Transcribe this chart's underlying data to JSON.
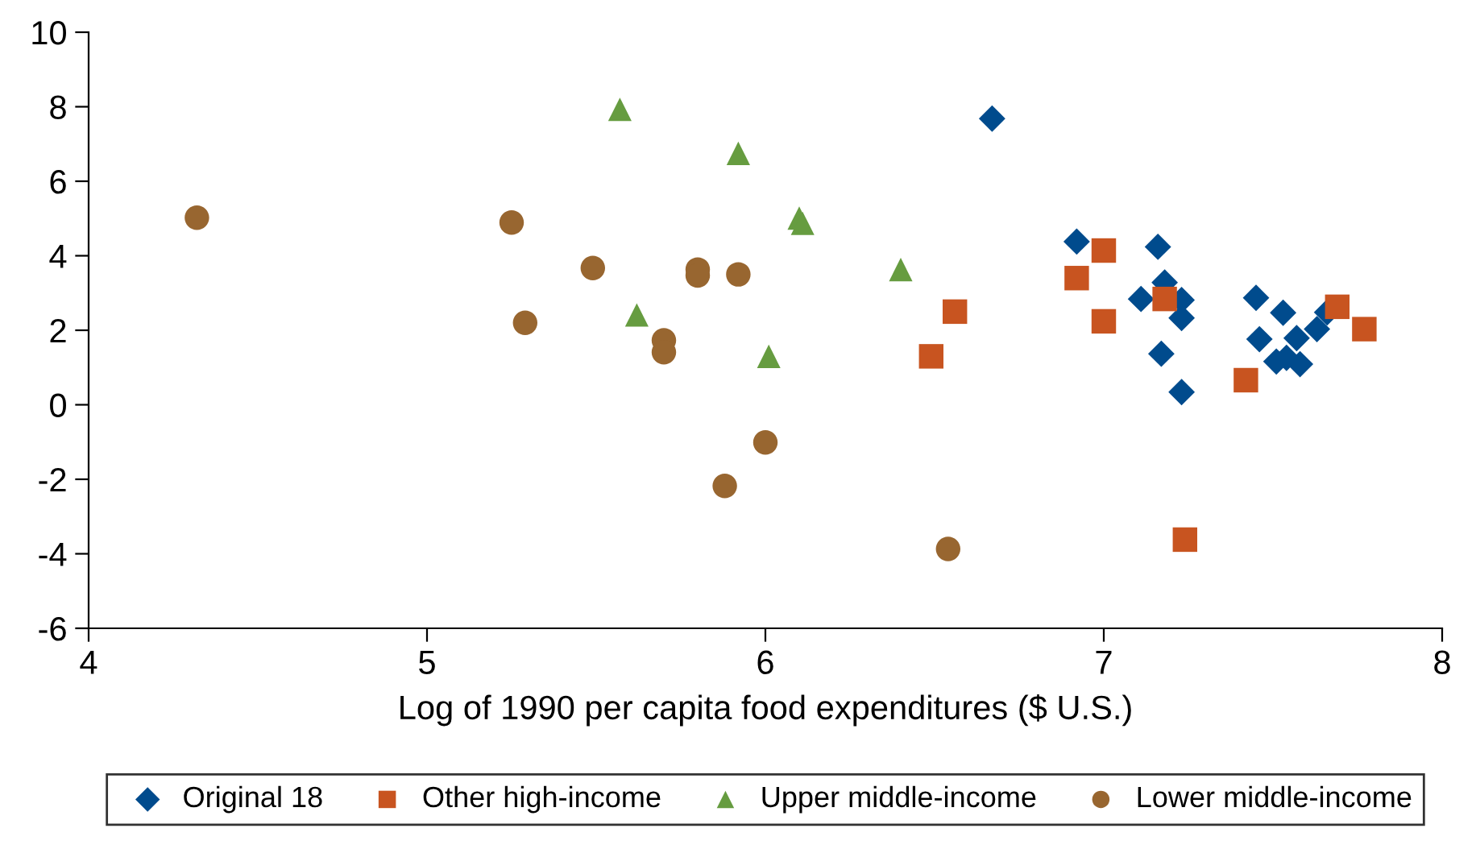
{
  "chart_data": {
    "type": "scatter",
    "xlabel": "Log of 1990 per capita food expenditures ($ U.S.)",
    "xlim": [
      4,
      8
    ],
    "ylim": [
      -6,
      10
    ],
    "xticks": [
      4,
      5,
      6,
      7,
      8
    ],
    "yticks": [
      -6,
      -4,
      -2,
      0,
      2,
      4,
      6,
      8,
      10
    ],
    "grid": false,
    "legend": "bottom",
    "series": [
      {
        "name": "Original 18",
        "color": "#004b8d",
        "marker": "diamond",
        "x": [
          6.67,
          6.92,
          7.16,
          7.18,
          7.11,
          7.23,
          7.23,
          7.17,
          7.23,
          7.45,
          7.53,
          7.46,
          7.57,
          7.63,
          7.66,
          7.51,
          7.54,
          7.58
        ],
        "values": [
          7.68,
          4.38,
          4.24,
          3.28,
          2.84,
          2.81,
          2.33,
          1.37,
          0.34,
          2.87,
          2.47,
          1.76,
          1.79,
          2.03,
          2.48,
          1.16,
          1.26,
          1.09
        ]
      },
      {
        "name": "Other high-income",
        "color": "#c85420",
        "marker": "square",
        "x": [
          6.49,
          6.56,
          7.0,
          6.92,
          7.0,
          7.18,
          7.42,
          7.69,
          7.77,
          7.24
        ],
        "values": [
          1.3,
          2.5,
          4.14,
          3.4,
          2.24,
          2.84,
          0.66,
          2.63,
          2.03,
          -3.62
        ]
      },
      {
        "name": "Upper middle-income",
        "color": "#669c40",
        "marker": "triangle",
        "x": [
          5.57,
          5.92,
          6.1,
          6.11,
          6.4,
          5.62,
          6.01
        ],
        "values": [
          7.93,
          6.75,
          5.01,
          4.87,
          3.63,
          2.41,
          1.3
        ]
      },
      {
        "name": "Lower middle-income",
        "color": "#986630",
        "marker": "circle",
        "x": [
          4.32,
          5.25,
          5.49,
          5.8,
          5.8,
          5.92,
          5.29,
          5.7,
          5.7,
          6.0,
          5.88,
          6.54
        ],
        "values": [
          5.02,
          4.89,
          3.67,
          3.63,
          3.47,
          3.5,
          2.2,
          1.73,
          1.41,
          -1.01,
          -2.18,
          -3.87
        ]
      }
    ]
  }
}
